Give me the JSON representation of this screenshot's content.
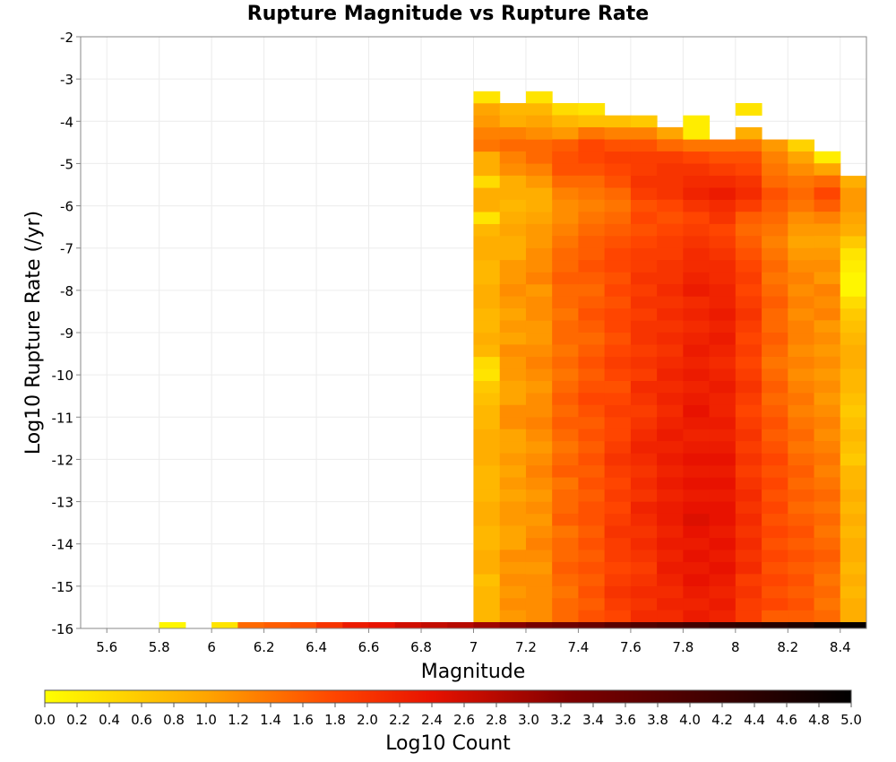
{
  "chart_data": {
    "type": "heatmap",
    "title": "Rupture Magnitude vs Rupture Rate",
    "xlabel": "Magnitude",
    "ylabel": "Log10 Rupture Rate (/yr)",
    "colorbar_label": "Log10 Count",
    "xlim": [
      5.5,
      8.5
    ],
    "ylim": [
      -16,
      -2
    ],
    "grid": true,
    "x_ticks": [
      "5.6",
      "5.8",
      "6",
      "6.2",
      "6.4",
      "6.6",
      "6.8",
      "7",
      "7.2",
      "7.4",
      "7.6",
      "7.8",
      "8",
      "8.2",
      "8.4"
    ],
    "y_ticks": [
      "-2",
      "-3",
      "-4",
      "-5",
      "-6",
      "-7",
      "-8",
      "-9",
      "-10",
      "-11",
      "-12",
      "-13",
      "-14",
      "-15",
      "-16"
    ],
    "colorbar_range": [
      0,
      5
    ],
    "colorbar_ticks": [
      "0.0",
      "0.2",
      "0.4",
      "0.6",
      "0.8",
      "1.0",
      "1.2",
      "1.4",
      "1.6",
      "1.8",
      "2.0",
      "2.2",
      "2.4",
      "2.6",
      "2.8",
      "3.0",
      "3.2",
      "3.4",
      "3.6",
      "3.8",
      "4.0",
      "4.2",
      "4.4",
      "4.6",
      "4.8",
      "5.0"
    ],
    "colormap": [
      "#ffff00",
      "#ffa500",
      "#ff4500",
      "#e81200",
      "#800000",
      "#000000"
    ],
    "x_bin_width": 0.1,
    "y_bin_height": 0.2857,
    "bins_x": [
      5.55,
      5.65,
      5.75,
      5.85,
      5.95,
      6.05,
      6.15,
      6.25,
      6.35,
      6.45,
      6.55,
      6.65,
      6.75,
      6.85,
      6.95,
      7.05,
      7.15,
      7.25,
      7.35,
      7.45,
      7.55,
      7.65,
      7.75,
      7.85,
      7.95,
      8.05,
      8.15,
      8.25,
      8.35,
      8.45
    ],
    "bottom_row": [
      null,
      null,
      null,
      0.1,
      null,
      0.3,
      1.5,
      1.6,
      1.7,
      2.0,
      2.3,
      2.4,
      2.6,
      2.7,
      2.8,
      3.0,
      3.2,
      3.4,
      3.5,
      3.6,
      3.8,
      3.9,
      4.0,
      4.1,
      4.3,
      4.4,
      4.5,
      4.6,
      4.8,
      4.9
    ],
    "columns": [
      {
        "x": 7.05,
        "top": -3.29,
        "values": [
          0.3,
          1.0,
          1.1,
          1.3,
          1.4,
          0.9,
          0.9,
          0.4,
          0.9,
          0.9,
          0.3,
          0.8,
          0.9,
          0.9,
          0.8,
          0.8,
          0.9,
          0.9,
          0.8,
          0.8,
          0.9,
          0.8,
          0.4,
          0.3,
          0.6,
          0.7,
          0.8,
          0.8,
          0.9,
          0.9,
          0.9,
          0.8,
          0.8,
          0.8,
          0.9,
          0.9,
          0.8,
          0.8,
          0.9,
          0.9,
          0.7,
          0.8,
          0.8,
          0.8,
          0.9,
          0.9
        ]
      },
      {
        "x": 7.15,
        "top": -3.57,
        "values": [
          0.8,
          0.9,
          1.3,
          1.5,
          1.3,
          1.2,
          0.9,
          0.9,
          0.8,
          0.9,
          1.0,
          0.9,
          0.9,
          1.1,
          1.1,
          1.2,
          1.1,
          1.0,
          1.1,
          1.0,
          1.2,
          1.1,
          1.1,
          1.0,
          1.0,
          1.2,
          1.2,
          1.0,
          1.0,
          1.1,
          1.0,
          1.1,
          1.0,
          1.1,
          1.1,
          1.0,
          1.0,
          1.2,
          1.1,
          1.2,
          1.1,
          1.2,
          1.1,
          1.1,
          1.2
        ]
      },
      {
        "x": 7.25,
        "top": -3.29,
        "values": [
          0.3,
          0.8,
          1.0,
          1.2,
          1.5,
          1.5,
          1.3,
          1.1,
          0.9,
          0.9,
          1.0,
          1.1,
          1.1,
          1.2,
          1.2,
          1.3,
          1.1,
          1.2,
          1.2,
          1.1,
          1.1,
          1.2,
          1.3,
          1.2,
          1.1,
          1.2,
          1.2,
          1.3,
          1.2,
          1.1,
          1.2,
          1.3,
          1.2,
          1.1,
          1.2,
          1.1,
          1.2,
          1.3,
          1.2,
          1.1,
          1.2,
          1.2,
          1.2,
          1.2,
          1.2,
          1.2
        ]
      },
      {
        "x": 7.35,
        "top": -3.57,
        "values": [
          0.4,
          0.8,
          1.1,
          1.6,
          1.7,
          1.7,
          1.5,
          1.3,
          1.2,
          1.2,
          1.3,
          1.4,
          1.5,
          1.5,
          1.6,
          1.5,
          1.5,
          1.4,
          1.5,
          1.5,
          1.4,
          1.5,
          1.4,
          1.5,
          1.6,
          1.5,
          1.6,
          1.5,
          1.4,
          1.5,
          1.6,
          1.4,
          1.5,
          1.5,
          1.6,
          1.4,
          1.5,
          1.5,
          1.6,
          1.5,
          1.4,
          1.5,
          1.5,
          1.5,
          1.6
        ]
      },
      {
        "x": 7.45,
        "top": -3.57,
        "values": [
          0.3,
          0.7,
          1.4,
          1.8,
          1.8,
          1.7,
          1.5,
          1.4,
          1.3,
          1.4,
          1.5,
          1.6,
          1.6,
          1.7,
          1.6,
          1.5,
          1.6,
          1.7,
          1.6,
          1.5,
          1.6,
          1.7,
          1.6,
          1.7,
          1.8,
          1.7,
          1.6,
          1.7,
          1.6,
          1.7,
          1.6,
          1.7,
          1.6,
          1.7,
          1.7,
          1.6,
          1.7,
          1.6,
          1.7,
          1.6,
          1.7,
          1.6,
          1.7,
          1.6
        ]
      },
      {
        "x": 7.55,
        "top": -3.86,
        "values": [
          0.7,
          1.3,
          1.7,
          1.9,
          1.8,
          1.7,
          1.5,
          1.4,
          1.5,
          1.6,
          1.7,
          1.8,
          1.8,
          1.7,
          1.8,
          1.7,
          1.8,
          1.8,
          1.7,
          1.8,
          1.9,
          1.8,
          1.7,
          1.8,
          1.9,
          1.8,
          1.8,
          1.9,
          2.0,
          1.9,
          1.8,
          1.9,
          1.8,
          1.9,
          2.0,
          1.9,
          1.9,
          1.8,
          1.9,
          2.0,
          1.9,
          1.8,
          1.9,
          1.9
        ]
      },
      {
        "x": 7.65,
        "top": -3.86,
        "values": [
          0.6,
          1.3,
          1.7,
          1.9,
          1.9,
          2.0,
          1.9,
          1.7,
          1.8,
          1.7,
          1.8,
          1.9,
          1.9,
          2.0,
          1.9,
          2.0,
          1.9,
          2.0,
          2.0,
          1.9,
          2.0,
          1.9,
          2.1,
          2.0,
          1.9,
          2.0,
          2.1,
          2.2,
          2.1,
          2.0,
          2.1,
          2.0,
          2.2,
          2.1,
          2.0,
          2.1,
          2.0,
          1.9,
          2.0,
          2.1,
          2.0,
          2.1,
          2.0,
          2.0
        ]
      },
      {
        "x": 7.75,
        "top": -4.14,
        "values": [
          1.0,
          1.5,
          1.9,
          2.0,
          2.0,
          2.0,
          1.8,
          1.7,
          1.8,
          1.9,
          1.9,
          2.0,
          2.0,
          2.1,
          2.0,
          2.1,
          2.0,
          2.1,
          2.0,
          2.1,
          2.2,
          2.1,
          2.2,
          2.1,
          2.2,
          2.3,
          2.2,
          2.3,
          2.2,
          2.3,
          2.2,
          2.3,
          2.3,
          2.2,
          2.3,
          2.2,
          2.3,
          2.2,
          2.1,
          2.2,
          2.1,
          2.2,
          2.1
        ]
      },
      {
        "x": 7.85,
        "top": -3.86,
        "values": [
          0.2,
          0.2,
          1.4,
          1.8,
          2.0,
          2.1,
          2.2,
          2.0,
          1.8,
          1.9,
          2.0,
          2.1,
          2.1,
          2.2,
          2.3,
          2.1,
          2.2,
          2.1,
          2.2,
          2.3,
          2.2,
          2.3,
          2.2,
          2.3,
          2.4,
          2.3,
          2.2,
          2.3,
          2.4,
          2.3,
          2.4,
          2.3,
          2.4,
          2.5,
          2.4,
          2.3,
          2.4,
          2.3,
          2.4,
          2.3,
          2.2,
          2.3,
          2.2,
          2.3
        ]
      },
      {
        "x": 7.95,
        "top": -4.43,
        "values": [
          1.4,
          1.7,
          1.9,
          2.1,
          2.3,
          2.1,
          2.0,
          1.8,
          1.9,
          2.0,
          2.1,
          2.1,
          2.2,
          2.2,
          2.3,
          2.2,
          2.3,
          2.2,
          2.1,
          2.2,
          2.3,
          2.2,
          2.2,
          2.3,
          2.2,
          2.3,
          2.4,
          2.3,
          2.4,
          2.3,
          2.4,
          2.4,
          2.3,
          2.4,
          2.3,
          2.4,
          2.3,
          2.2,
          2.3,
          2.2,
          2.2,
          2.3
        ]
      },
      {
        "x": 8.05,
        "top": -3.57,
        "values": [
          0.3,
          null,
          0.9,
          1.4,
          1.7,
          1.8,
          2.0,
          2.1,
          1.9,
          1.6,
          1.5,
          1.6,
          1.7,
          1.8,
          1.9,
          1.8,
          1.9,
          2.0,
          1.9,
          1.8,
          1.9,
          1.8,
          1.9,
          2.0,
          1.9,
          1.8,
          1.9,
          2.0,
          1.9,
          2.0,
          1.9,
          2.0,
          2.1,
          2.0,
          2.1,
          2.0,
          2.1,
          2.0,
          2.1,
          1.9,
          2.0,
          1.9,
          1.9,
          2.0,
          2.0
        ]
      },
      {
        "x": 8.15,
        "top": -4.43,
        "values": [
          1.1,
          1.3,
          1.4,
          1.5,
          1.7,
          1.6,
          1.5,
          1.4,
          1.3,
          1.4,
          1.5,
          1.4,
          1.5,
          1.6,
          1.5,
          1.5,
          1.6,
          1.5,
          1.4,
          1.5,
          1.6,
          1.5,
          1.6,
          1.7,
          1.6,
          1.7,
          1.8,
          1.7,
          1.8,
          1.7,
          1.8,
          1.7,
          1.8,
          1.7,
          1.8,
          1.7,
          1.8,
          1.7,
          1.8,
          1.6,
          1.7,
          1.7
        ]
      },
      {
        "x": 8.25,
        "top": -4.43,
        "values": [
          0.5,
          1.0,
          1.2,
          1.4,
          1.5,
          1.4,
          1.2,
          1.1,
          1.0,
          1.1,
          1.2,
          1.3,
          1.2,
          1.3,
          1.2,
          1.3,
          1.3,
          1.2,
          1.3,
          1.2,
          1.3,
          1.4,
          1.3,
          1.4,
          1.5,
          1.4,
          1.5,
          1.6,
          1.5,
          1.6,
          1.5,
          1.6,
          1.7,
          1.6,
          1.7,
          1.6,
          1.7,
          1.6,
          1.7,
          1.6,
          1.5,
          1.6
        ]
      },
      {
        "x": 8.35,
        "top": -4.71,
        "values": [
          0.2,
          1.0,
          1.5,
          1.8,
          1.6,
          1.3,
          1.1,
          1.0,
          1.1,
          1.2,
          1.1,
          1.3,
          1.2,
          1.3,
          1.1,
          1.2,
          1.1,
          1.2,
          1.1,
          1.2,
          1.1,
          1.2,
          1.3,
          1.2,
          1.3,
          1.4,
          1.3,
          1.4,
          1.5,
          1.4,
          1.5,
          1.4,
          1.5,
          1.6,
          1.5,
          1.4,
          1.5,
          1.4,
          1.5,
          1.4,
          1.4
        ]
      },
      {
        "x": 8.45,
        "top": -5.29,
        "values": [
          0.9,
          1.1,
          1.1,
          1.0,
          0.9,
          0.6,
          0.3,
          0.2,
          0.1,
          0.1,
          0.4,
          0.6,
          0.7,
          0.8,
          0.9,
          0.9,
          0.8,
          0.8,
          0.7,
          0.6,
          0.7,
          0.8,
          0.7,
          0.6,
          0.8,
          0.8,
          0.9,
          0.8,
          0.9,
          0.8,
          0.9,
          0.9,
          0.8,
          0.9,
          0.8,
          0.9,
          0.9,
          0.8,
          0.9
        ]
      }
    ]
  }
}
